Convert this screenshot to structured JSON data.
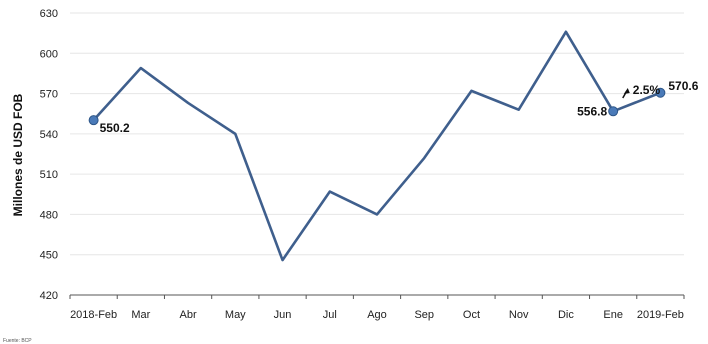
{
  "chart_data": {
    "type": "line",
    "title": "",
    "xlabel": "",
    "ylabel": "Millones de USD FOB",
    "categories": [
      "2018-Feb",
      "Mar",
      "Abr",
      "May",
      "Jun",
      "Jul",
      "Ago",
      "Sep",
      "Oct",
      "Nov",
      "Dic",
      "Ene",
      "2019-Feb"
    ],
    "series": [
      {
        "values": [
          550.2,
          589,
          563,
          540,
          446,
          497,
          480,
          522,
          572,
          558,
          616,
          556.8,
          570.6
        ]
      }
    ],
    "ylim": [
      420,
      630
    ],
    "yticks": [
      420,
      450,
      480,
      510,
      540,
      570,
      600,
      630
    ],
    "grid": true,
    "legend": "none",
    "data_labels": [
      {
        "index": 0,
        "text": "550.2"
      },
      {
        "index": 11,
        "text": "556.8"
      },
      {
        "index": 12,
        "text": "570.6"
      }
    ],
    "annotation": {
      "text": "2.5%",
      "from_index": 11,
      "to_index": 12
    },
    "colors": {
      "line": "#3f5f8d",
      "marker": "#4a7ab8",
      "grid": "#e6e6e6",
      "axis": "#555555"
    }
  },
  "source_text": "Fuente: BCP"
}
